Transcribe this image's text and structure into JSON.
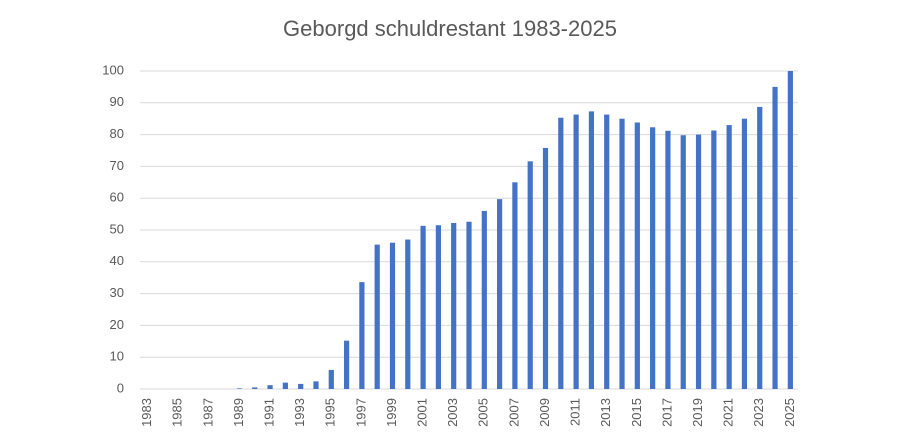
{
  "chart_data": {
    "type": "bar",
    "title": "Geborgd schuldrestant 1983-2025",
    "categories": [
      "1983",
      null,
      "1985",
      null,
      "1987",
      null,
      "1989",
      null,
      "1991",
      null,
      "1993",
      null,
      "1995",
      null,
      "1997",
      null,
      "1999",
      null,
      "2001",
      null,
      "2003",
      null,
      "2005",
      null,
      "2007",
      null,
      "2009",
      null,
      "2011",
      null,
      "2013",
      null,
      "2015",
      null,
      "2017",
      null,
      "2019",
      null,
      "2021",
      null,
      "2023",
      null,
      "2025"
    ],
    "values": [
      0,
      0,
      0,
      0,
      0,
      0,
      0.2,
      0.5,
      1.2,
      2.0,
      1.6,
      2.4,
      6.0,
      15.2,
      33.6,
      45.4,
      46.0,
      47.0,
      51.3,
      51.5,
      52.2,
      52.6,
      56.0,
      59.7,
      65.0,
      71.6,
      75.8,
      85.3,
      86.3,
      87.3,
      86.3,
      85.0,
      83.8,
      82.3,
      81.2,
      79.8,
      80.0,
      81.3,
      83.0,
      85.0,
      88.7,
      95.0,
      100
    ],
    "color": "#4472c4",
    "ylim": [
      0,
      100
    ],
    "yticks": [
      0,
      10,
      20,
      30,
      40,
      50,
      60,
      70,
      80,
      90,
      100
    ],
    "grid": true
  }
}
